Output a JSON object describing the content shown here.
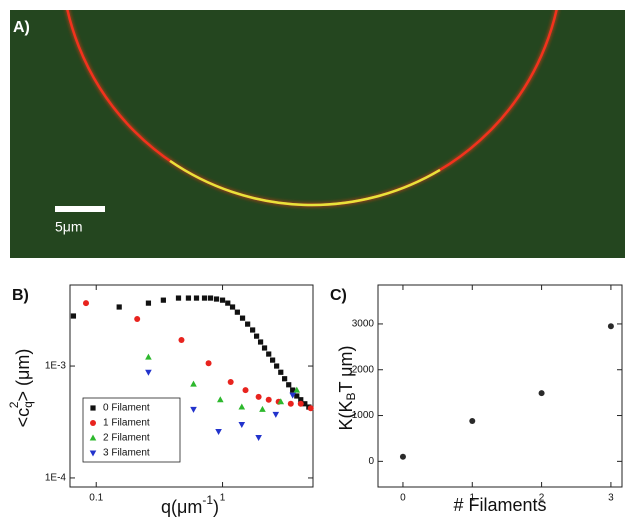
{
  "image": {
    "label": "A)",
    "scale_bar": "5μm"
  },
  "chart_data": [
    {
      "type": "scatter",
      "panel_label": "B)",
      "xlabel_parts": [
        "q(μm",
        "-1",
        ")"
      ],
      "ylabel_parts": [
        "<c",
        "q",
        "2",
        "> (μm)"
      ],
      "log_x": true,
      "log_y": true,
      "xlim": [
        0.062,
        5.2
      ],
      "ylim": [
        8.3e-05,
        0.0053
      ],
      "xticks": [
        0.1,
        1
      ],
      "yticks": [
        {
          "value": 0.001,
          "label": "1E-3"
        },
        {
          "value": 0.0001,
          "label": "1E-4"
        }
      ],
      "legend": "lower left",
      "series": [
        {
          "name": "0 Filament",
          "color": "#111111",
          "marker": "square",
          "x": [
            0.066,
            0.152,
            0.259,
            0.34,
            0.448,
            0.537,
            0.622,
            0.72,
            0.803,
            0.896,
            1.0,
            1.1,
            1.2,
            1.31,
            1.44,
            1.58,
            1.73,
            1.86,
            2.0,
            2.15,
            2.32,
            2.49,
            2.68,
            2.89,
            3.1,
            3.34,
            3.59,
            3.87,
            4.16,
            4.48,
            4.82
          ],
          "values": [
            0.0028,
            0.00337,
            0.00365,
            0.00388,
            0.00405,
            0.00405,
            0.00405,
            0.00405,
            0.00405,
            0.00397,
            0.00388,
            0.00365,
            0.00337,
            0.00303,
            0.00268,
            0.00237,
            0.0021,
            0.00185,
            0.00164,
            0.00145,
            0.00128,
            0.00113,
            0.001,
            0.00088,
            0.00077,
            0.00068,
            0.00061,
            0.00054,
            0.0005,
            0.00046,
            0.00043
          ]
        },
        {
          "name": "1 Filament",
          "color": "#e8231e",
          "marker": "circle",
          "x": [
            0.083,
            0.211,
            0.473,
            0.775,
            1.16,
            1.52,
            1.93,
            2.32,
            2.78,
            3.47,
            4.16,
            4.99
          ],
          "values": [
            0.00365,
            0.00263,
            0.00171,
            0.00106,
            0.00072,
            0.00061,
            0.00053,
            0.0005,
            0.00048,
            0.00046,
            0.00046,
            0.00042
          ]
        },
        {
          "name": "2 Filament",
          "color": "#2db82d",
          "marker": "triangle-up",
          "x": [
            0.259,
            0.589,
            0.96,
            1.42,
            2.07,
            2.89,
            3.87
          ],
          "values": [
            0.0012,
            0.00069,
            0.0005,
            0.00043,
            0.00041,
            0.00048,
            0.00061
          ]
        },
        {
          "name": "3 Filament",
          "color": "#2233cc",
          "marker": "triangle-down",
          "x": [
            0.259,
            0.589,
            0.93,
            1.42,
            1.93,
            2.64,
            3.59
          ],
          "values": [
            0.00088,
            0.00041,
            0.00026,
            0.0003,
            0.00023,
            0.00037,
            0.00055
          ]
        }
      ]
    },
    {
      "type": "scatter",
      "panel_label": "C)",
      "xlabel_parts": [
        "# Filaments"
      ],
      "ylabel_parts": [
        "K(K",
        "B",
        "T μm)"
      ],
      "log_x": false,
      "log_y": false,
      "xlim": [
        -0.36,
        3.16
      ],
      "ylim": [
        -560,
        3850
      ],
      "xticks": [
        0,
        1,
        2,
        3
      ],
      "yticks": [
        0,
        1000,
        2000,
        3000
      ],
      "series": [
        {
          "color": "#2a2a2a",
          "marker": "circle",
          "x": [
            0,
            1,
            2,
            3
          ],
          "values": [
            100,
            880,
            1490,
            2950
          ]
        }
      ]
    }
  ]
}
